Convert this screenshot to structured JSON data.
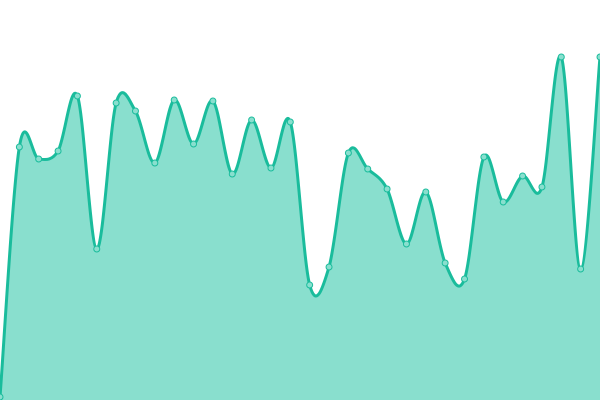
{
  "chart_data": {
    "type": "area",
    "title": "",
    "xlabel": "",
    "ylabel": "",
    "smooth": true,
    "grid": false,
    "axes_visible": false,
    "ylim": [
      0,
      400
    ],
    "x": [
      0,
      1,
      2,
      3,
      4,
      5,
      6,
      7,
      8,
      9,
      10,
      11,
      12,
      13,
      14,
      15,
      16,
      17,
      18,
      19,
      20,
      21,
      22,
      23,
      24,
      25,
      26,
      27,
      28,
      29,
      30,
      31
    ],
    "values": [
      3,
      253,
      241,
      249,
      304,
      151,
      297,
      289,
      237,
      300,
      256,
      299,
      226,
      280,
      232,
      278,
      115,
      133,
      247,
      231,
      211,
      156,
      208,
      137,
      121,
      243,
      198,
      224,
      213,
      343,
      131,
      343
    ],
    "colors": {
      "line": "#1abc9c",
      "fill": "#89dfce",
      "marker_fill": "#89dfce"
    }
  }
}
